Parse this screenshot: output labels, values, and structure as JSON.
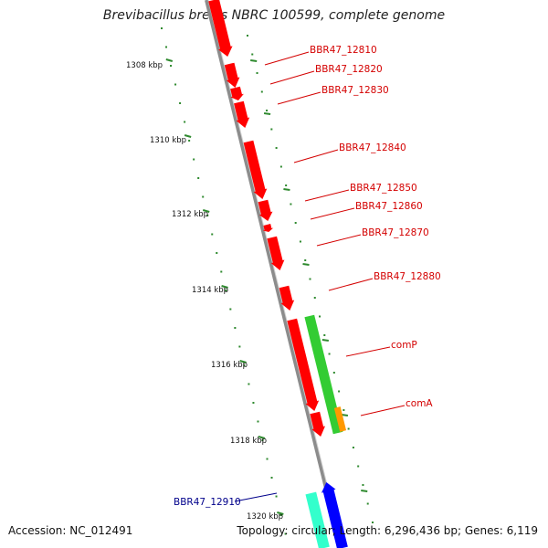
{
  "title": "Brevibacillus brevis NBRC 100599, complete genome",
  "accession": "Accession: NC_012491",
  "topology": "Topology: circular; Length: 6,296,436 bp; Genes: 6,119",
  "colors": {
    "backbone": "#8c8c8c",
    "tick": "#2f8a2f",
    "gene_forward": "#ff0000",
    "gene_reverse_green": "#33cc33",
    "gene_orange": "#ff9900",
    "gene_blue": "#0000ff",
    "gene_teal": "#33ffcc",
    "label_red": "#d40000",
    "label_blue": "#00008b"
  },
  "kbp_labels": [
    "1308 kbp",
    "1310 kbp",
    "1312 kbp",
    "1314 kbp",
    "1316 kbp",
    "1318 kbp",
    "1320 kbp"
  ],
  "gene_labels": [
    {
      "text": "BBR47_12810",
      "color": "red"
    },
    {
      "text": "BBR47_12820",
      "color": "red"
    },
    {
      "text": "BBR47_12830",
      "color": "red"
    },
    {
      "text": "BBR47_12840",
      "color": "red"
    },
    {
      "text": "BBR47_12850",
      "color": "red"
    },
    {
      "text": "BBR47_12860",
      "color": "red"
    },
    {
      "text": "BBR47_12870",
      "color": "red"
    },
    {
      "text": "BBR47_12880",
      "color": "red"
    },
    {
      "text": "comP",
      "color": "red"
    },
    {
      "text": "comA",
      "color": "red"
    },
    {
      "text": "BBR47_12910",
      "color": "blue"
    }
  ]
}
